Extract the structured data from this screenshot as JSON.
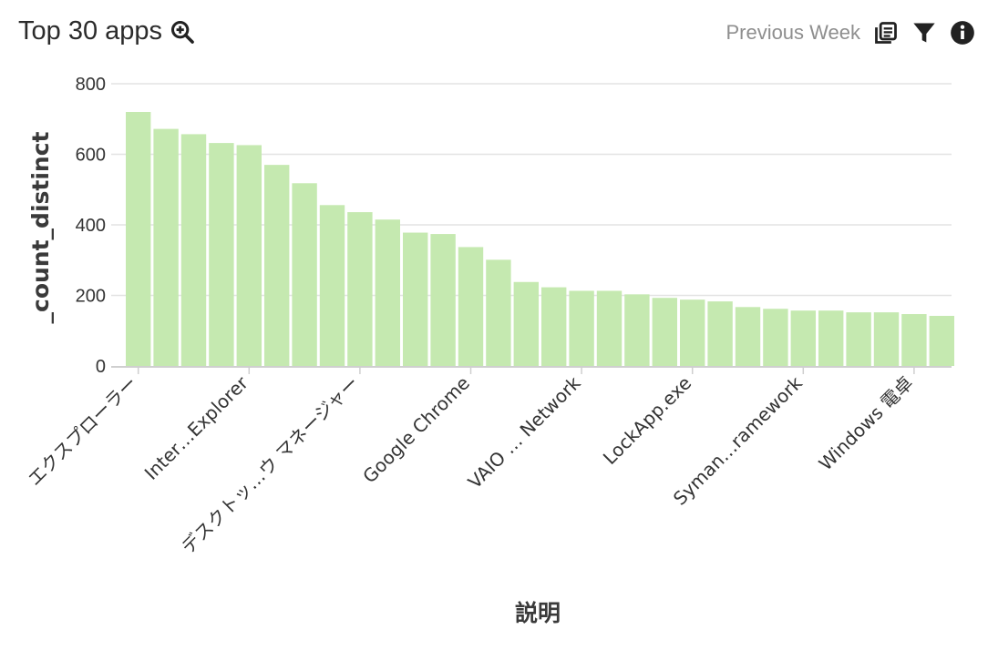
{
  "header": {
    "title": "Top 30 apps",
    "period": "Previous Week",
    "icons": {
      "zoom": "zoom-in-icon",
      "copy": "copy-icon",
      "filter": "filter-icon",
      "info": "info-icon"
    }
  },
  "colors": {
    "bar": "#c5e9b0",
    "grid": "#e3e3e3",
    "axis": "#cfcfcf",
    "text": "#333333",
    "muted": "#8e8e8e"
  },
  "chart_data": {
    "type": "bar",
    "xlabel": "説明",
    "ylabel": "_count_distinct",
    "ylim": [
      0,
      800
    ],
    "yticks": [
      0,
      200,
      400,
      600,
      800
    ],
    "grid": true,
    "visible_category_labels": [
      "エクスプローラー",
      "Inter…Explorer",
      "デスクトッ…ウ マネージャー",
      "Google Chrome",
      "VAIO … Network",
      "LockApp.exe",
      "Syman…ramework",
      "Windows 電卓"
    ],
    "label_every": 4,
    "values": [
      720,
      672,
      657,
      632,
      626,
      570,
      518,
      456,
      436,
      415,
      378,
      374,
      337,
      301,
      238,
      223,
      213,
      213,
      203,
      193,
      188,
      183,
      167,
      162,
      157,
      157,
      152,
      152,
      147,
      142
    ]
  }
}
